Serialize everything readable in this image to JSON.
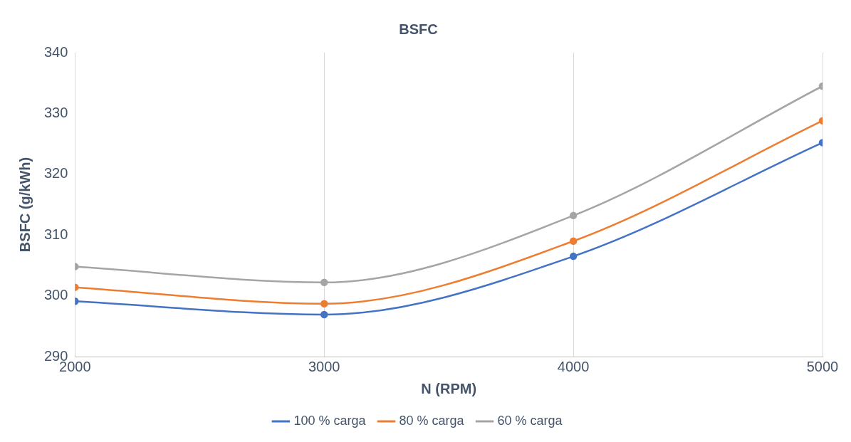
{
  "chart_data": {
    "type": "line",
    "title": "BSFC",
    "xlabel": "N (RPM)",
    "ylabel": "BSFC (g/kWh)",
    "x": [
      2000,
      3000,
      4000,
      5000
    ],
    "series": [
      {
        "name": "100 % carga",
        "color": "#4472c4",
        "values": [
          299.1,
          296.9,
          306.5,
          325.2
        ]
      },
      {
        "name": "80 % carga",
        "color": "#ed7d31",
        "values": [
          301.4,
          298.7,
          309.0,
          328.8
        ]
      },
      {
        "name": "60 % carga",
        "color": "#a5a5a5",
        "values": [
          304.8,
          302.2,
          313.2,
          334.5
        ]
      }
    ],
    "xlim": [
      2000,
      5000
    ],
    "xticks": [
      2000,
      3000,
      4000,
      5000
    ],
    "ylim": [
      290,
      340
    ],
    "yticks": [
      290,
      300,
      310,
      320,
      330,
      340
    ],
    "grid": "x",
    "legend": "bottom",
    "marker": "circle",
    "line_style": "solid"
  }
}
